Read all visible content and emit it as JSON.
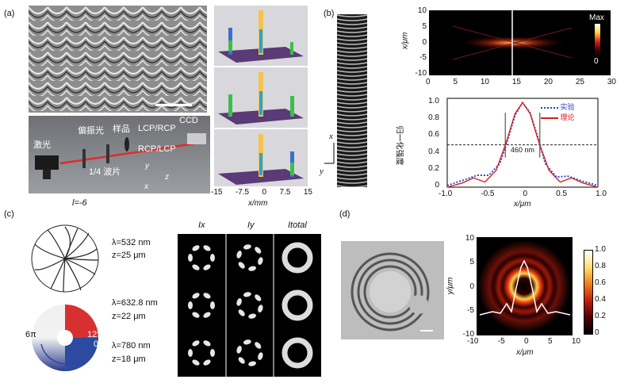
{
  "panels": {
    "a": "(a)",
    "b": "(b)",
    "c": "(c)",
    "d": "(d)"
  },
  "a": {
    "setup": {
      "laser": "激光",
      "polarizer": "偏振光",
      "sample": "样品",
      "lcp_rcp": "LCP/RCP",
      "ccd": "CCD",
      "rcp_lcp": "RCP/LCP",
      "quarter": "1/4 波片",
      "ax_x": "x",
      "ax_y": "y",
      "ax_z": "z"
    },
    "l_label": "l=-6",
    "xaxis": {
      "label": "x/mm",
      "ticks": [
        "-15",
        "-7.5",
        "0",
        "7.5",
        "15"
      ]
    }
  },
  "b": {
    "ax_x": "x",
    "ax_y": "y",
    "top": {
      "ylabel": "x/μm",
      "yticks": [
        "10",
        "5",
        "0",
        "-5",
        "-10"
      ],
      "xticks": [
        "0",
        "5",
        "10",
        "15",
        "20",
        "25",
        "30"
      ],
      "cb_max": "Max",
      "cb_min": "0"
    },
    "bottom": {
      "ylabel": "归一化强度",
      "xlabel": "x/μm",
      "yticks": [
        "1.0",
        "0.8",
        "0.6",
        "0.4",
        "0.2",
        "0"
      ],
      "xticks": [
        "-1.0",
        "-0.5",
        "0",
        "0.5",
        "1.0"
      ],
      "annotation": "460 nm",
      "legend": [
        "实验",
        "理论"
      ]
    }
  },
  "c": {
    "items": [
      {
        "lam": "λ=532 nm",
        "z": "z=25 μm"
      },
      {
        "lam": "λ=632.8 nm",
        "z": "z=22 μm"
      },
      {
        "lam": "λ=780 nm",
        "z": "z=18 μm"
      }
    ],
    "phase": {
      "a": "6π",
      "b": "12π",
      "c": "0"
    },
    "cols": [
      "Ix",
      "Iy",
      "Itotal"
    ]
  },
  "d": {
    "ylabel": "y/μm",
    "xlabel": "x/μm",
    "yticks": [
      "10",
      "5",
      "0",
      "-5",
      "-10"
    ],
    "xticks": [
      "-10",
      "-5",
      "0",
      "5",
      "10"
    ],
    "cb": [
      "1.0",
      "0.8",
      "0.6",
      "0.4",
      "0.2",
      "0"
    ]
  },
  "chart_data": [
    {
      "type": "line",
      "xlabel": "x/μm",
      "ylabel": "归一化强度",
      "xlim": [
        -1.0,
        1.0
      ],
      "ylim": [
        0,
        1.05
      ],
      "series": [
        {
          "name": "实验",
          "x": [
            -1.0,
            -0.8,
            -0.6,
            -0.45,
            -0.3,
            -0.2,
            -0.1,
            0,
            0.1,
            0.2,
            0.3,
            0.45,
            0.6,
            0.8,
            1.0
          ],
          "y": [
            0.02,
            0.08,
            0.14,
            0.14,
            0.28,
            0.55,
            0.85,
            1.0,
            0.88,
            0.6,
            0.28,
            0.12,
            0.13,
            0.07,
            0.02
          ]
        },
        {
          "name": "理论",
          "x": [
            -1.0,
            -0.8,
            -0.65,
            -0.5,
            -0.35,
            -0.22,
            -0.1,
            0,
            0.1,
            0.22,
            0.35,
            0.5,
            0.65,
            0.8,
            1.0
          ],
          "y": [
            0.0,
            0.05,
            0.11,
            0.06,
            0.2,
            0.52,
            0.87,
            1.0,
            0.87,
            0.52,
            0.2,
            0.06,
            0.11,
            0.05,
            0.0
          ]
        }
      ],
      "hline": 0.5
    }
  ]
}
